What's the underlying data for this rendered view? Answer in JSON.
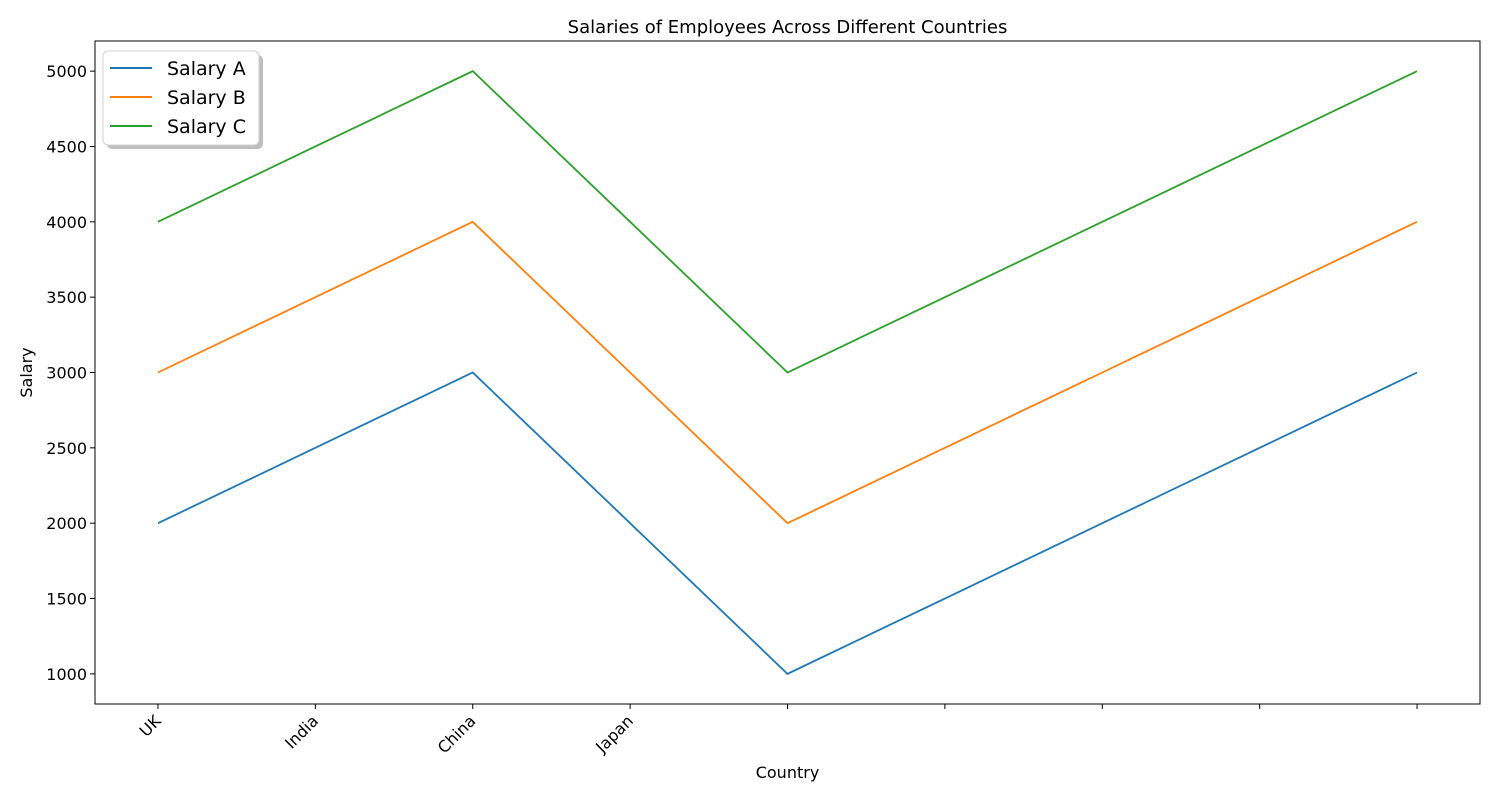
{
  "chart_data": {
    "type": "line",
    "title": "Salaries of Employees Across Different Countries",
    "xlabel": "Country",
    "ylabel": "Salary",
    "x": [
      0,
      1,
      2,
      3,
      4,
      5,
      6,
      7,
      8
    ],
    "x_tick_labels": [
      "UK",
      "India",
      "China",
      "Japan",
      "",
      "",
      "",
      "",
      ""
    ],
    "y_ticks": [
      1000,
      1500,
      2000,
      2500,
      3000,
      3500,
      4000,
      4500,
      5000
    ],
    "ylim": [
      800,
      5200
    ],
    "xlim": [
      -0.4,
      8.4
    ],
    "grid": false,
    "legend_position": "top-left",
    "series": [
      {
        "name": "Salary A",
        "color": "#1f77b4",
        "values": [
          2000,
          2500,
          3000,
          2000,
          1000,
          1500,
          2000,
          2500,
          3000
        ]
      },
      {
        "name": "Salary B",
        "color": "#ff7f0e",
        "values": [
          3000,
          3500,
          4000,
          3000,
          2000,
          2500,
          3000,
          3500,
          4000
        ]
      },
      {
        "name": "Salary C",
        "color": "#2ca02c",
        "values": [
          4000,
          4500,
          5000,
          4000,
          3000,
          3500,
          4000,
          4500,
          5000
        ]
      }
    ]
  }
}
